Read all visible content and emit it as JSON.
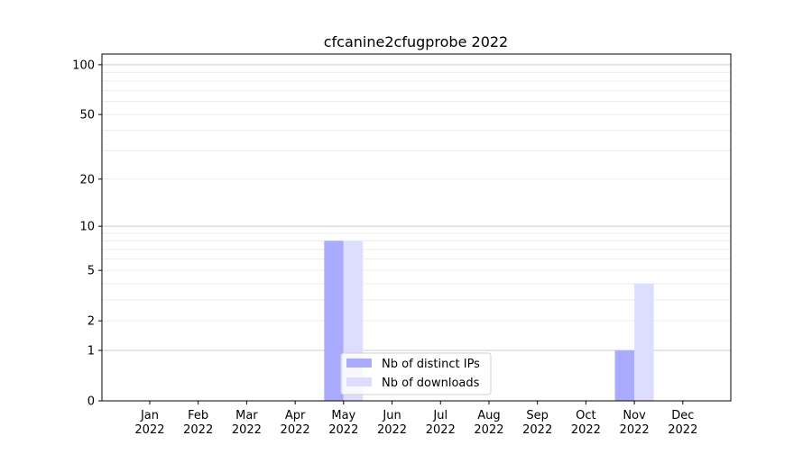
{
  "chart_data": {
    "type": "bar",
    "title": "cfcanine2cfugprobe 2022",
    "xlabel": "",
    "ylabel": "",
    "y_scale": "log(1+y)",
    "ylim": [
      0,
      116
    ],
    "yticks": [
      0,
      1,
      2,
      5,
      10,
      20,
      50,
      100
    ],
    "grid": "horizontal",
    "legend_position": "bottom-center",
    "categories": [
      "Jan\n2022",
      "Feb\n2022",
      "Mar\n2022",
      "Apr\n2022",
      "May\n2022",
      "Jun\n2022",
      "Jul\n2022",
      "Aug\n2022",
      "Sep\n2022",
      "Oct\n2022",
      "Nov\n2022",
      "Dec\n2022"
    ],
    "series": [
      {
        "name": "Nb of distinct IPs",
        "color": "#aaaaff",
        "values": [
          0,
          0,
          0,
          0,
          8,
          0,
          0,
          0,
          0,
          0,
          1,
          0
        ]
      },
      {
        "name": "Nb of downloads",
        "color": "#ddddff",
        "values": [
          0,
          0,
          0,
          0,
          8,
          0,
          0,
          0,
          0,
          0,
          4,
          0
        ]
      }
    ]
  }
}
